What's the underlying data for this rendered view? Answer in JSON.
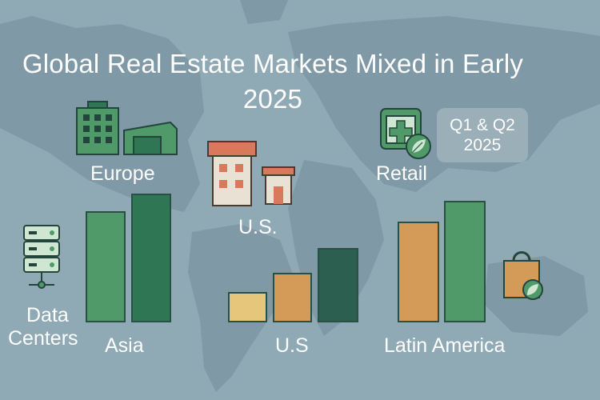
{
  "title_line1": "Global Real Estate Markets Mixed in Early",
  "title_line2": "2025",
  "badge": {
    "line1": "Q1 & Q2",
    "line2": "2025"
  },
  "labels": {
    "europe": "Europe",
    "us_top": "U.S.",
    "retail": "Retail",
    "data_centers_1": "Data",
    "data_centers_2": "Centers",
    "asia": "Asia",
    "us_bottom": "U.S",
    "latin_america": "Latin America"
  },
  "icons": [
    "office-building-icon",
    "warehouse-icon",
    "house-icon",
    "small-house-icon",
    "store-plus-icon",
    "leaf-icon",
    "server-rack-icon",
    "shopping-bag-icon"
  ],
  "colors": {
    "background": "#8fa9b5",
    "map": "#7f99a6",
    "green_light": "#4f9a68",
    "green_dark": "#2f7655",
    "yellow": "#e6c67b",
    "orange": "#d49a58",
    "teal_dark": "#2c5f4f"
  },
  "chart_data": [
    {
      "type": "bar",
      "group": "Asia",
      "values": [
        80,
        90
      ],
      "colors": [
        "#4f9a68",
        "#2f7655"
      ]
    },
    {
      "type": "bar",
      "group": "U.S",
      "values": [
        26,
        38,
        58
      ],
      "colors": [
        "#e6c67b",
        "#d49a58",
        "#2c5f4f"
      ]
    },
    {
      "type": "bar",
      "group": "Latin America",
      "values": [
        83,
        94
      ],
      "colors": [
        "#d49a58",
        "#4f9a68"
      ]
    }
  ]
}
